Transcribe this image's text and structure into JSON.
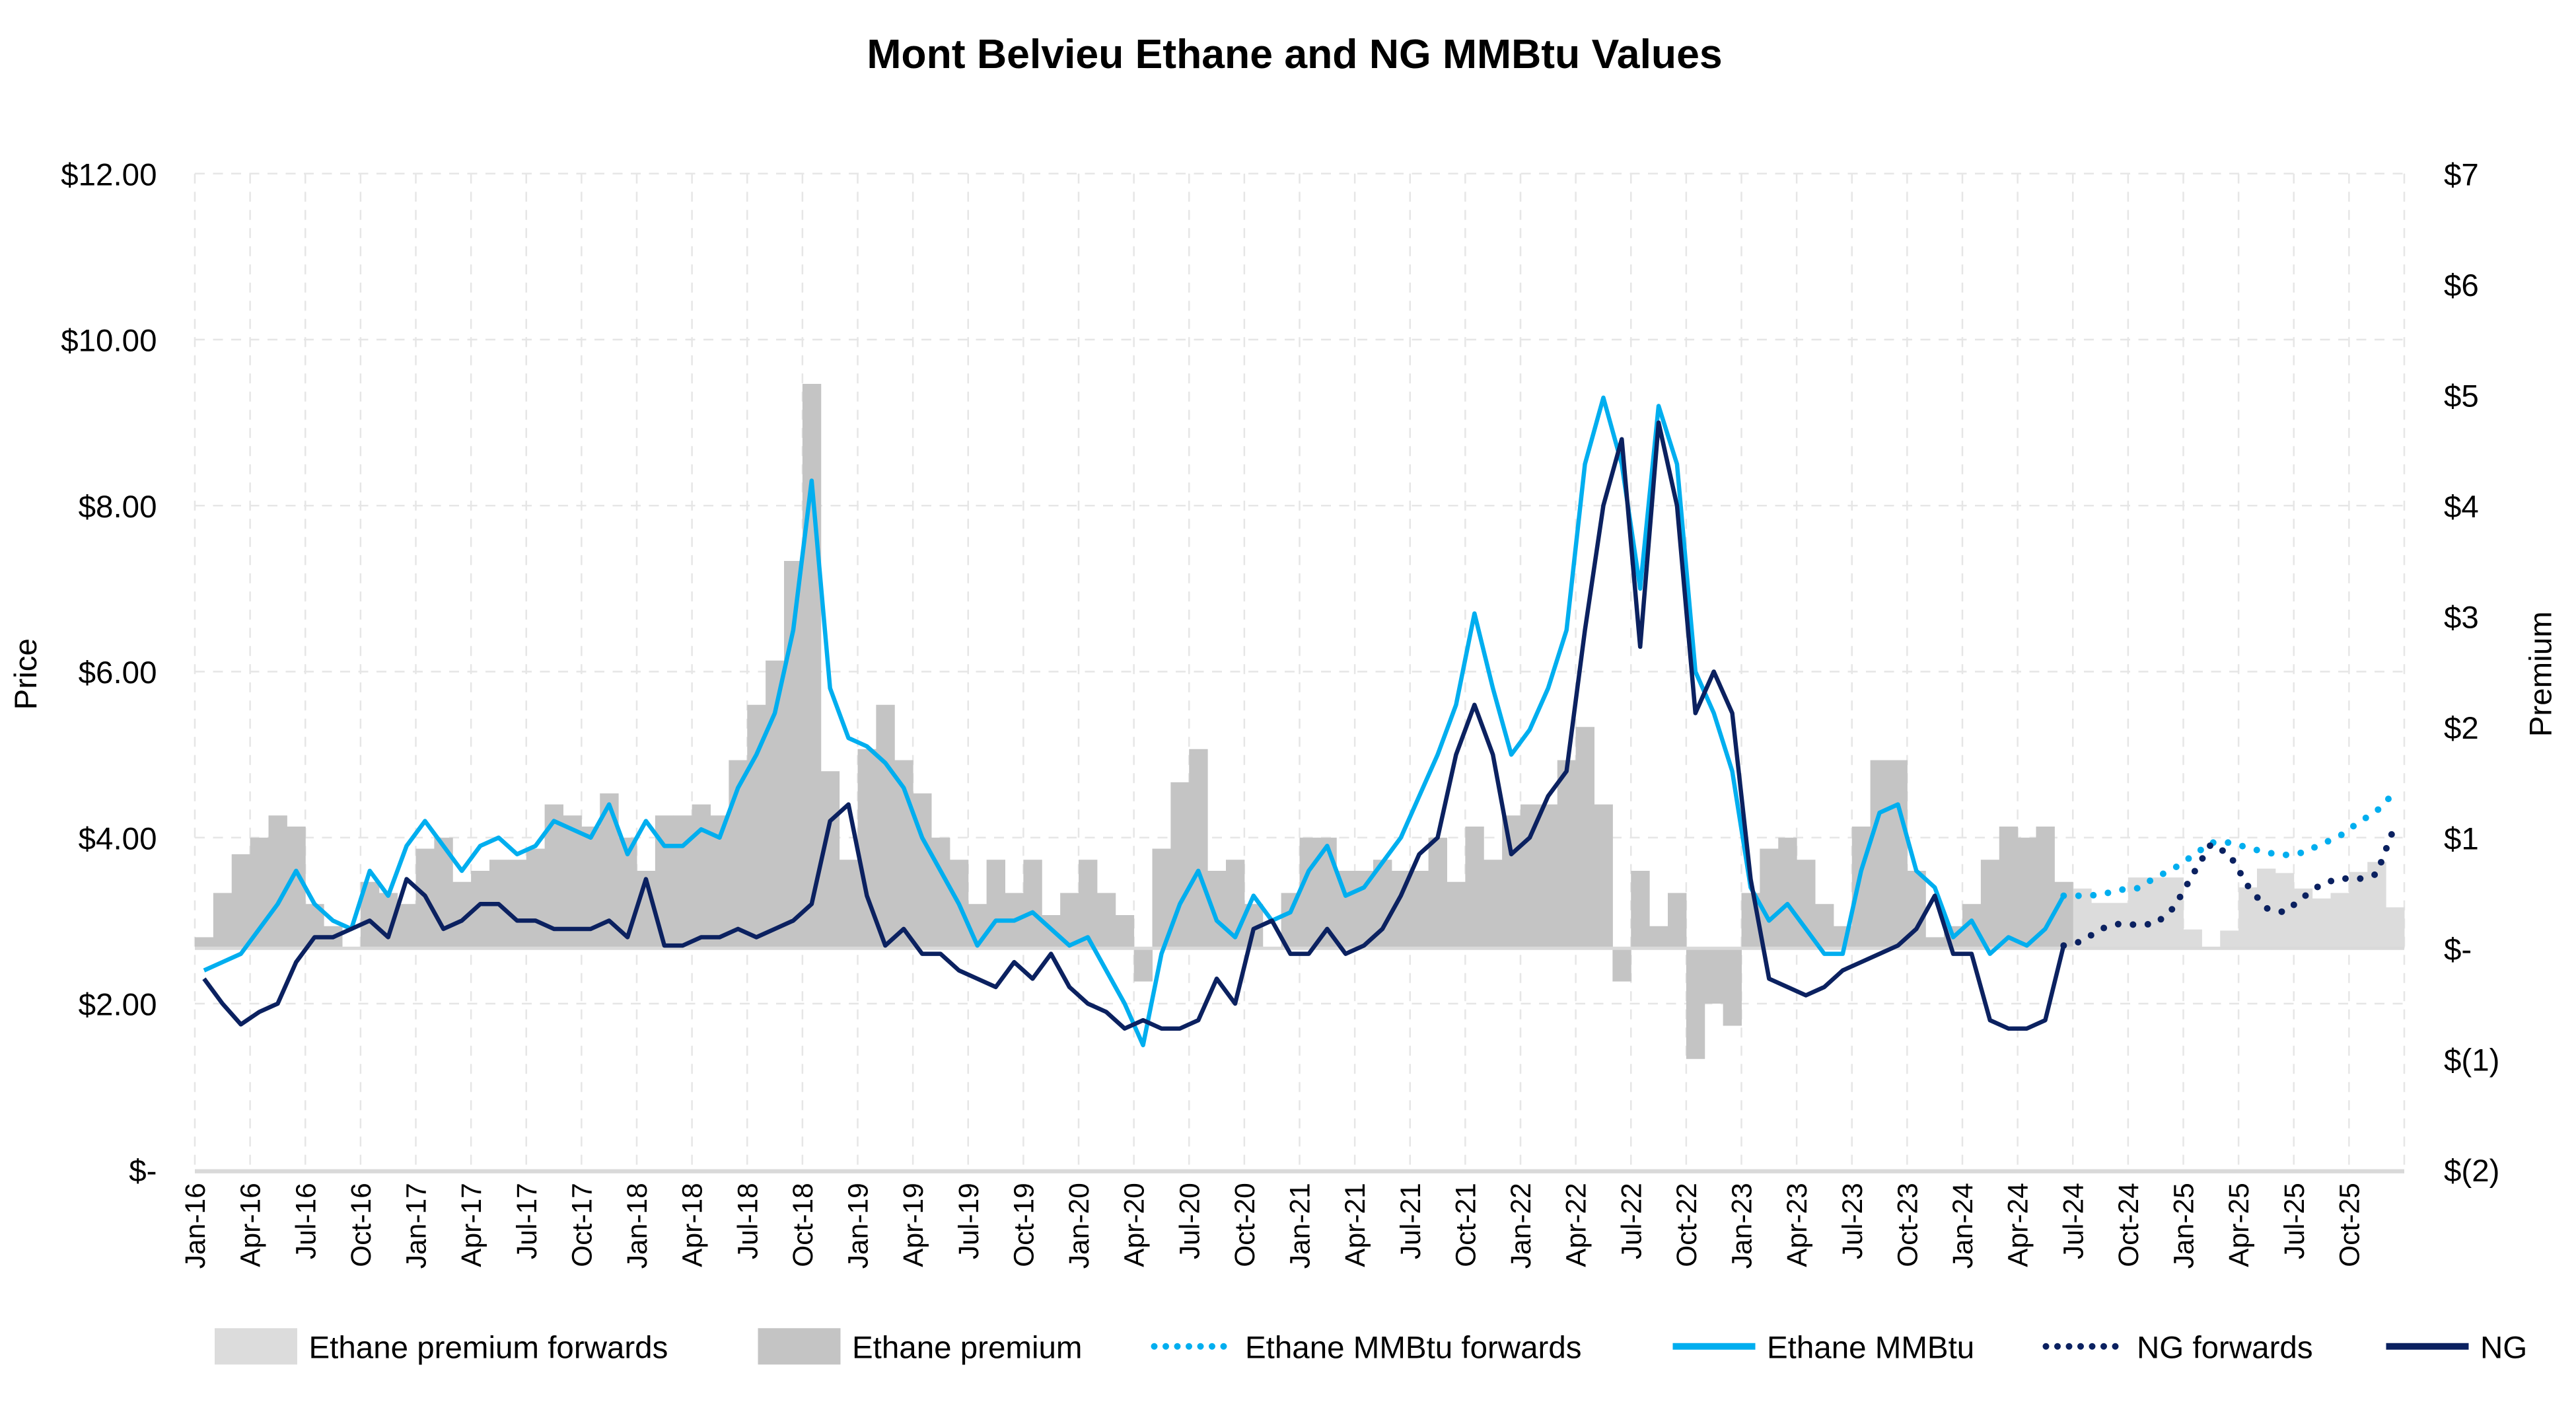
{
  "chart_data": {
    "type": "line",
    "title": "Mont Belvieu Ethane and NG MMBtu Values",
    "ylabel": "Price",
    "y2label": "Premium",
    "ylim": [
      0,
      12
    ],
    "y2lim": [
      -2,
      7
    ],
    "y_ticks": [
      "$-",
      "$2.00",
      "$4.00",
      "$6.00",
      "$8.00",
      "$10.00",
      "$12.00"
    ],
    "y_tick_values": [
      0,
      2,
      4,
      6,
      8,
      10,
      12
    ],
    "y2_ticks": [
      "$(2)",
      "$(1)",
      "$-",
      "$1",
      "$2",
      "$3",
      "$4",
      "$5",
      "$6",
      "$7"
    ],
    "y2_tick_values": [
      -2,
      -1,
      0,
      1,
      2,
      3,
      4,
      5,
      6,
      7
    ],
    "x_ticks": [
      "Jan-16",
      "Apr-16",
      "Jul-16",
      "Oct-16",
      "Jan-17",
      "Apr-17",
      "Jul-17",
      "Oct-17",
      "Jan-18",
      "Apr-18",
      "Jul-18",
      "Oct-18",
      "Jan-19",
      "Apr-19",
      "Jul-19",
      "Oct-19",
      "Jan-20",
      "Apr-20",
      "Jul-20",
      "Oct-20",
      "Jan-21",
      "Apr-21",
      "Jul-21",
      "Oct-21",
      "Jan-22",
      "Apr-22",
      "Jul-22",
      "Oct-22",
      "Jan-23",
      "Apr-23",
      "Jul-23",
      "Oct-23",
      "Jan-24",
      "Apr-24",
      "Jul-24",
      "Oct-24",
      "Jan-25",
      "Apr-25",
      "Jul-25",
      "Oct-25"
    ],
    "x_end": "Dec-25",
    "grid": true,
    "legend_position": "bottom",
    "colors": {
      "ethane": "#00aeef",
      "ng": "#0b2160",
      "premium": "#c4c4c4",
      "premium_forwards": "#dcdcdc",
      "axis": "#d9d9d9"
    },
    "history_months": [
      "Jan-16",
      "Feb-16",
      "Mar-16",
      "Apr-16",
      "May-16",
      "Jun-16",
      "Jul-16",
      "Aug-16",
      "Sep-16",
      "Oct-16",
      "Nov-16",
      "Dec-16",
      "Jan-17",
      "Feb-17",
      "Mar-17",
      "Apr-17",
      "May-17",
      "Jun-17",
      "Jul-17",
      "Aug-17",
      "Sep-17",
      "Oct-17",
      "Nov-17",
      "Dec-17",
      "Jan-18",
      "Feb-18",
      "Mar-18",
      "Apr-18",
      "May-18",
      "Jun-18",
      "Jul-18",
      "Aug-18",
      "Sep-18",
      "Oct-18",
      "Nov-18",
      "Dec-18",
      "Jan-19",
      "Feb-19",
      "Mar-19",
      "Apr-19",
      "May-19",
      "Jun-19",
      "Jul-19",
      "Aug-19",
      "Sep-19",
      "Oct-19",
      "Nov-19",
      "Dec-19",
      "Jan-20",
      "Feb-20",
      "Mar-20",
      "Apr-20",
      "May-20",
      "Jun-20",
      "Jul-20",
      "Aug-20",
      "Sep-20",
      "Oct-20",
      "Nov-20",
      "Dec-20",
      "Jan-21",
      "Feb-21",
      "Mar-21",
      "Apr-21",
      "May-21",
      "Jun-21",
      "Jul-21",
      "Aug-21",
      "Sep-21",
      "Oct-21",
      "Nov-21",
      "Dec-21",
      "Jan-22",
      "Feb-22",
      "Mar-22",
      "Apr-22",
      "May-22",
      "Jun-22",
      "Jul-22",
      "Aug-22",
      "Sep-22",
      "Oct-22",
      "Nov-22",
      "Dec-22",
      "Jan-23",
      "Feb-23",
      "Mar-23",
      "Apr-23",
      "May-23",
      "Jun-23",
      "Jul-23",
      "Aug-23",
      "Sep-23",
      "Oct-23",
      "Nov-23",
      "Dec-23",
      "Jan-24",
      "Feb-24",
      "Mar-24",
      "Apr-24",
      "May-24",
      "Jun-24"
    ],
    "forward_months": [
      "Jul-24",
      "Aug-24",
      "Sep-24",
      "Oct-24",
      "Nov-24",
      "Dec-24",
      "Jan-25",
      "Feb-25",
      "Mar-25",
      "Apr-25",
      "May-25",
      "Jun-25",
      "Jul-25",
      "Aug-25",
      "Sep-25",
      "Oct-25",
      "Nov-25",
      "Dec-25"
    ],
    "series": [
      {
        "name": "Ethane premium forwards",
        "kind": "bar",
        "axis": "right",
        "months": "forward_months",
        "values": [
          0.54,
          0.41,
          0.41,
          0.64,
          0.64,
          0.64,
          0.17,
          0.01,
          0.16,
          0.55,
          0.72,
          0.68,
          0.54,
          0.45,
          0.5,
          0.69,
          0.78,
          0.37
        ]
      },
      {
        "name": "Ethane premium",
        "kind": "bar",
        "axis": "right",
        "months": "history_months",
        "values": [
          0.1,
          0.5,
          0.85,
          1.0,
          1.2,
          1.1,
          0.4,
          0.2,
          0.0,
          0.6,
          0.5,
          0.4,
          0.9,
          1.0,
          0.6,
          0.7,
          0.8,
          0.8,
          0.9,
          1.3,
          1.2,
          1.1,
          1.4,
          1.0,
          0.7,
          1.2,
          1.2,
          1.3,
          1.2,
          1.7,
          2.2,
          2.6,
          3.5,
          5.1,
          1.6,
          0.8,
          1.8,
          2.2,
          1.7,
          1.4,
          1.0,
          0.8,
          0.4,
          0.8,
          0.5,
          0.8,
          0.3,
          0.5,
          0.8,
          0.5,
          0.3,
          -0.3,
          0.9,
          1.5,
          1.8,
          0.7,
          0.8,
          0.4,
          0.0,
          0.5,
          1.0,
          1.0,
          0.7,
          0.7,
          0.8,
          0.7,
          0.7,
          1.0,
          0.6,
          1.1,
          0.8,
          1.2,
          1.3,
          1.3,
          1.7,
          2.0,
          1.3,
          -0.3,
          0.7,
          0.2,
          0.5,
          -1.0,
          -0.5,
          -0.7,
          0.5,
          0.9,
          1.0,
          0.8,
          0.4,
          0.2,
          1.1,
          1.7,
          1.7,
          0.7,
          0.1,
          0.2,
          0.4,
          0.8,
          1.1,
          1.0,
          1.1,
          0.6
        ]
      },
      {
        "name": "Ethane MMBtu forwards",
        "kind": "dotted",
        "axis": "left",
        "months": "forward_months",
        "color": "#00aeef",
        "values": [
          3.3,
          3.31,
          3.37,
          3.39,
          3.52,
          3.63,
          3.78,
          3.94,
          3.94,
          3.88,
          3.82,
          3.79,
          3.82,
          3.92,
          4.02,
          4.18,
          4.32,
          4.55
        ]
      },
      {
        "name": "Ethane MMBtu",
        "kind": "line",
        "axis": "left",
        "months": "history_months",
        "color": "#00aeef",
        "values": [
          2.4,
          2.5,
          2.6,
          2.9,
          3.2,
          3.6,
          3.2,
          3.0,
          2.9,
          3.6,
          3.3,
          3.9,
          4.2,
          3.9,
          3.6,
          3.9,
          4.0,
          3.8,
          3.9,
          4.2,
          4.1,
          4.0,
          4.4,
          3.8,
          4.2,
          3.9,
          3.9,
          4.1,
          4.0,
          4.6,
          5.0,
          5.5,
          6.5,
          8.3,
          5.8,
          5.2,
          5.1,
          4.9,
          4.6,
          4.0,
          3.6,
          3.2,
          2.7,
          3.0,
          3.0,
          3.1,
          2.9,
          2.7,
          2.8,
          2.4,
          2.0,
          1.5,
          2.6,
          3.2,
          3.6,
          3.0,
          2.8,
          3.3,
          3.0,
          3.1,
          3.6,
          3.9,
          3.3,
          3.4,
          3.7,
          4.0,
          4.5,
          5.0,
          5.6,
          6.7,
          5.8,
          5.0,
          5.3,
          5.8,
          6.5,
          8.5,
          9.3,
          8.5,
          7.0,
          9.2,
          8.5,
          6.0,
          5.5,
          4.8,
          3.4,
          3.0,
          3.2,
          2.9,
          2.6,
          2.6,
          3.6,
          4.3,
          4.4,
          3.6,
          3.4,
          2.8,
          3.0,
          2.6,
          2.8,
          2.7,
          2.9,
          3.3
        ]
      },
      {
        "name": "NG forwards",
        "kind": "dotted",
        "axis": "left",
        "months": "forward_months",
        "color": "#0b2160",
        "values": [
          2.75,
          2.9,
          2.96,
          2.95,
          2.96,
          3.16,
          3.55,
          3.92,
          3.8,
          3.42,
          3.15,
          3.1,
          3.28,
          3.44,
          3.51,
          3.5,
          3.56,
          4.15
        ]
      },
      {
        "name": "NG",
        "kind": "line",
        "axis": "left",
        "months": "history_months",
        "color": "#0b2160",
        "values": [
          2.3,
          2.0,
          1.75,
          1.9,
          2.0,
          2.5,
          2.8,
          2.8,
          2.9,
          3.0,
          2.8,
          3.5,
          3.3,
          2.9,
          3.0,
          3.2,
          3.2,
          3.0,
          3.0,
          2.9,
          2.9,
          2.9,
          3.0,
          2.8,
          3.5,
          2.7,
          2.7,
          2.8,
          2.8,
          2.9,
          2.8,
          2.9,
          3.0,
          3.2,
          4.2,
          4.4,
          3.3,
          2.7,
          2.9,
          2.6,
          2.6,
          2.4,
          2.3,
          2.2,
          2.5,
          2.3,
          2.6,
          2.2,
          2.0,
          1.9,
          1.7,
          1.8,
          1.7,
          1.7,
          1.8,
          2.3,
          2.0,
          2.9,
          3.0,
          2.6,
          2.6,
          2.9,
          2.6,
          2.7,
          2.9,
          3.3,
          3.8,
          4.0,
          5.0,
          5.6,
          5.0,
          3.8,
          4.0,
          4.5,
          4.8,
          6.5,
          8.0,
          8.8,
          6.3,
          9.0,
          8.0,
          5.5,
          6.0,
          5.5,
          3.5,
          2.3,
          2.2,
          2.1,
          2.2,
          2.4,
          2.5,
          2.6,
          2.7,
          2.9,
          3.3,
          2.6,
          2.6,
          1.8,
          1.7,
          1.7,
          1.8,
          2.7
        ]
      }
    ]
  }
}
